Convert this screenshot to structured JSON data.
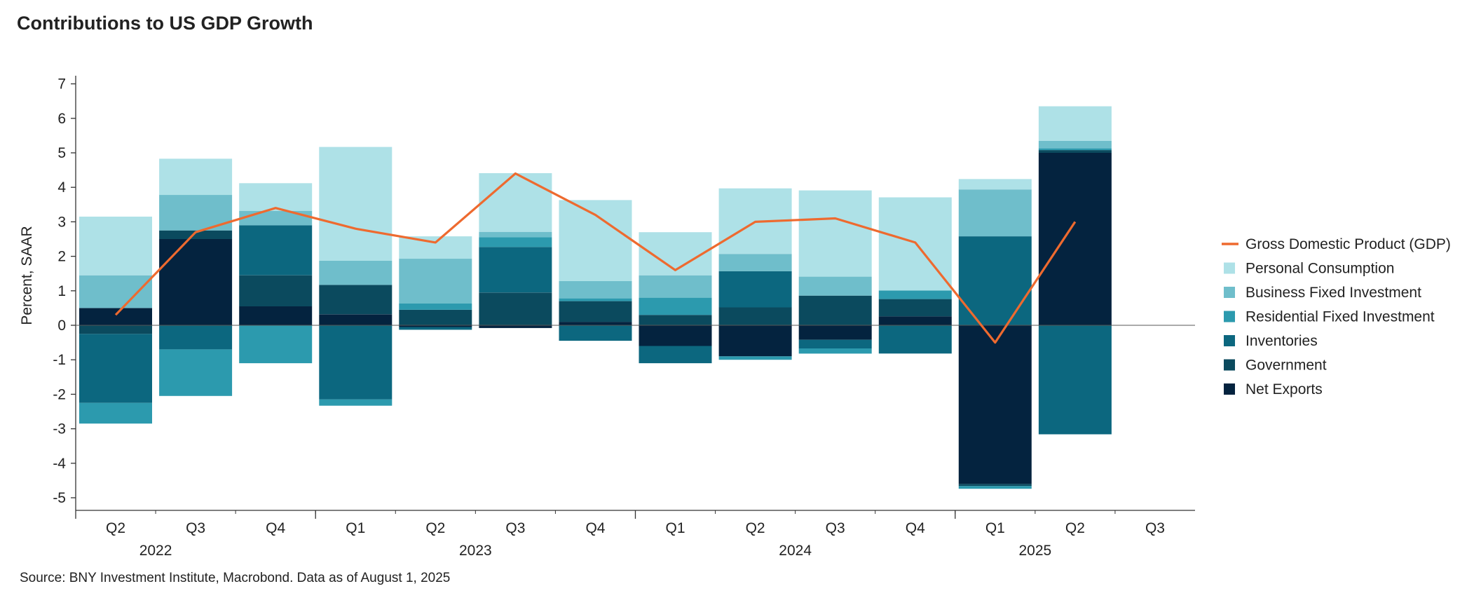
{
  "title": "Contributions to US GDP Growth",
  "source": "Source: BNY Investment Institute, Macrobond. Data as of August 1, 2025",
  "chart_data": {
    "type": "bar",
    "stacked": true,
    "ylabel": "Percent, SAAR",
    "ylim": [
      -5,
      7
    ],
    "yticks": [
      -5,
      -4,
      -3,
      -2,
      -1,
      0,
      1,
      2,
      3,
      4,
      5,
      6,
      7
    ],
    "categories": [
      "Q2",
      "Q3",
      "Q4",
      "Q1",
      "Q2",
      "Q3",
      "Q4",
      "Q1",
      "Q2",
      "Q3",
      "Q4",
      "Q1",
      "Q2",
      "Q3"
    ],
    "year_labels": [
      {
        "label": "2022",
        "start": 0,
        "end": 2
      },
      {
        "label": "2023",
        "start": 3,
        "end": 6
      },
      {
        "label": "2024",
        "start": 7,
        "end": 10
      },
      {
        "label": "2025",
        "start": 11,
        "end": 13
      }
    ],
    "legend_position": "right",
    "series": [
      {
        "name": "Net Exports",
        "type": "bar",
        "color": "#04233f",
        "values": [
          0.5,
          2.5,
          0.55,
          0.32,
          -0.05,
          -0.08,
          0.1,
          -0.6,
          -0.9,
          -0.42,
          0.26,
          -4.6,
          5.0,
          null
        ]
      },
      {
        "name": "Government",
        "type": "bar",
        "color": "#0b4a5e",
        "values": [
          -0.25,
          0.25,
          0.9,
          0.85,
          0.45,
          0.95,
          0.6,
          0.3,
          0.52,
          0.86,
          0.5,
          -0.06,
          0.08,
          null
        ]
      },
      {
        "name": "Inventories",
        "type": "bar",
        "color": "#0c677f",
        "values": [
          -2.0,
          -0.7,
          1.45,
          -2.15,
          -0.08,
          1.32,
          -0.45,
          -0.5,
          1.05,
          -0.25,
          -0.82,
          2.58,
          -3.16,
          null
        ]
      },
      {
        "name": "Residential Fixed Investment",
        "type": "bar",
        "color": "#2c9aae",
        "values": [
          -0.6,
          -1.35,
          -1.1,
          -0.18,
          0.18,
          0.28,
          0.08,
          0.5,
          -0.1,
          -0.15,
          0.25,
          -0.08,
          0.05,
          null
        ]
      },
      {
        "name": "Business Fixed Investment",
        "type": "bar",
        "color": "#6fbecb",
        "values": [
          0.95,
          1.03,
          0.42,
          0.7,
          1.3,
          0.16,
          0.5,
          0.65,
          0.5,
          0.55,
          0.0,
          1.36,
          0.22,
          null
        ]
      },
      {
        "name": "Personal Consumption",
        "type": "bar",
        "color": "#aee1e7",
        "values": [
          1.7,
          1.05,
          0.8,
          3.3,
          0.65,
          1.7,
          2.35,
          1.25,
          1.9,
          2.5,
          2.7,
          0.3,
          1.0,
          null
        ]
      },
      {
        "name": "Gross Domestic Product (GDP)",
        "type": "line",
        "color": "#ee6a2f",
        "values": [
          0.3,
          2.7,
          3.4,
          2.8,
          2.4,
          4.4,
          3.2,
          1.6,
          3.0,
          3.1,
          2.4,
          -0.5,
          3.0,
          null
        ]
      }
    ],
    "legend_order": [
      "Gross Domestic Product (GDP)",
      "Personal Consumption",
      "Business Fixed Investment",
      "Residential Fixed Investment",
      "Inventories",
      "Government",
      "Net Exports"
    ]
  }
}
